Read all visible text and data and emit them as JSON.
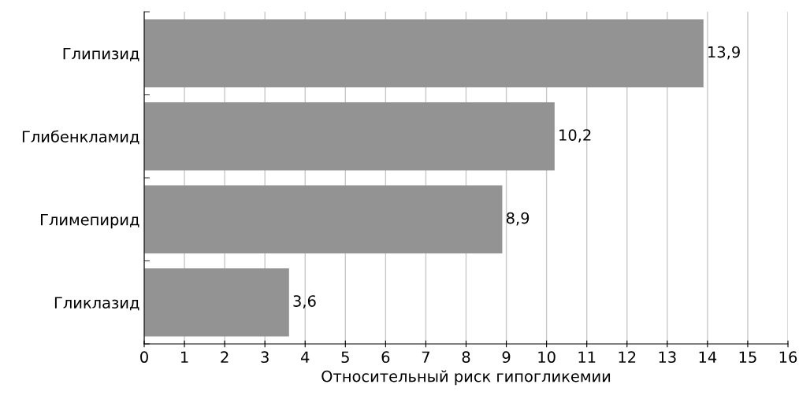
{
  "chart_data": {
    "type": "bar",
    "orientation": "horizontal",
    "xlabel": "Относительный риск гипогликемии",
    "categories": [
      "Глипизид",
      "Глибенкламид",
      "Глимепирид",
      "Гликлазид"
    ],
    "values": [
      13.9,
      10.2,
      8.9,
      3.6
    ],
    "color": "#939393",
    "value_labels": [
      "13,9",
      "10,2",
      "8,9",
      "3,6"
    ],
    "xlim": [
      0,
      16
    ],
    "xticks": [
      0,
      1,
      2,
      3,
      4,
      5,
      6,
      7,
      8,
      9,
      10,
      11,
      12,
      13,
      14,
      15,
      16
    ],
    "grid": "x",
    "legend": false
  }
}
